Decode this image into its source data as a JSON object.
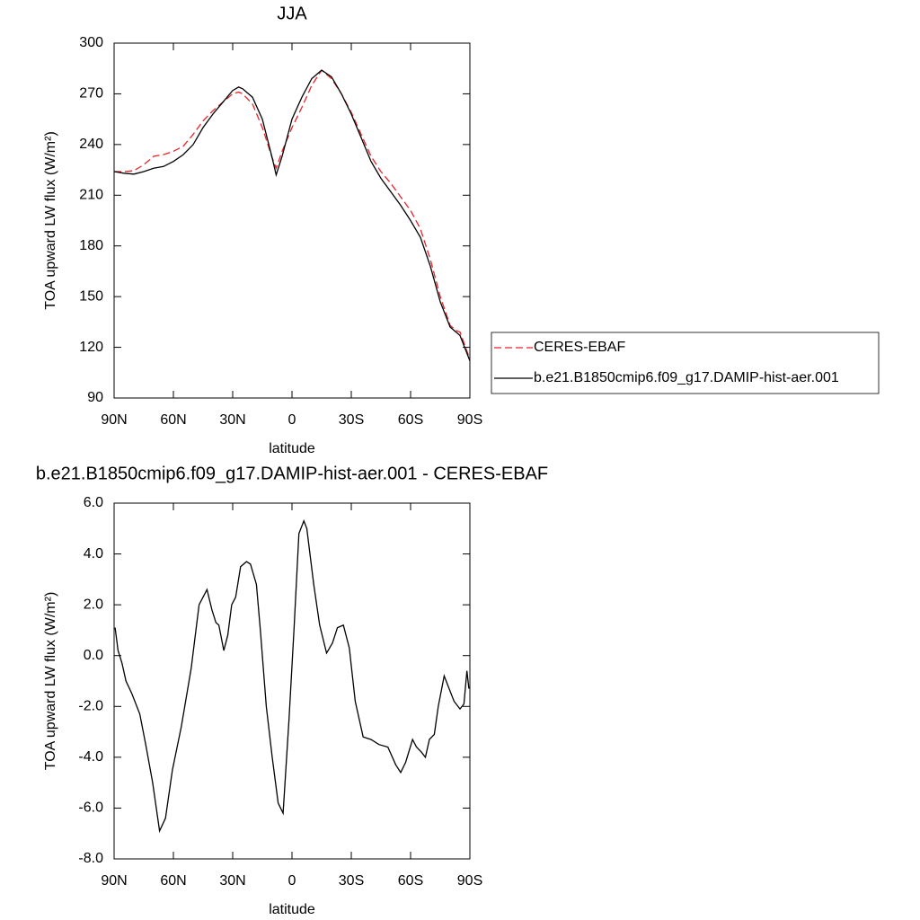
{
  "chart_data": [
    {
      "type": "line",
      "title": "JJA",
      "x_label": "latitude",
      "y_label": "TOA upward LW flux (W/m²)",
      "x": [
        90,
        85,
        80,
        75,
        70,
        65,
        60,
        55,
        50,
        45,
        40,
        35,
        30,
        27,
        25,
        20,
        15,
        10,
        8,
        5,
        0,
        -5,
        -10,
        -15,
        -20,
        -25,
        -30,
        -35,
        -40,
        -45,
        -50,
        -55,
        -60,
        -65,
        -70,
        -75,
        -80,
        -83,
        -85,
        -90
      ],
      "xlim": [
        90,
        -90
      ],
      "xticks": [
        {
          "value": 90,
          "label": "90N"
        },
        {
          "value": 60,
          "label": "60N"
        },
        {
          "value": 30,
          "label": "30N"
        },
        0,
        {
          "value": -30,
          "label": "30S"
        },
        {
          "value": -60,
          "label": "60S"
        },
        {
          "value": -90,
          "label": "90S"
        }
      ],
      "ylim": [
        90,
        300
      ],
      "yticks": [
        90,
        120,
        150,
        180,
        210,
        240,
        270,
        300
      ],
      "legend": "right",
      "series": [
        {
          "name": "CERES-EBAF",
          "color": "#e8232a",
          "style": "dashed",
          "values": [
            224,
            224,
            224.5,
            228,
            233,
            234,
            236,
            239,
            246,
            254,
            260,
            265,
            270,
            271,
            270,
            264,
            250,
            232,
            226,
            236,
            250,
            262,
            275,
            284,
            279,
            270,
            259,
            246,
            233,
            224,
            217,
            209,
            201,
            190,
            172,
            150,
            133,
            130,
            129,
            113
          ]
        },
        {
          "name": "b.e21.B1850cmip6.f09_g17.DAMIP-hist-aer.001",
          "color": "#000000",
          "style": "solid",
          "values": [
            224,
            223,
            222.5,
            224,
            226,
            227,
            230,
            234,
            240,
            250,
            258,
            265,
            272,
            274,
            273,
            268,
            255,
            232,
            222,
            233,
            255,
            268,
            279,
            284,
            280,
            270,
            258,
            244,
            230,
            220,
            212,
            204,
            195,
            185,
            168,
            147,
            132,
            129,
            127,
            112
          ]
        }
      ]
    },
    {
      "type": "line",
      "title": "b.e21.B1850cmip6.f09_g17.DAMIP-hist-aer.001 - CERES-EBAF",
      "x_label": "latitude",
      "y_label": "TOA upward LW flux (W/m²)",
      "x": [
        89.5,
        88,
        86,
        84,
        81,
        77,
        74,
        70.5,
        67,
        64,
        60.5,
        56,
        51,
        47,
        43,
        40.5,
        38.5,
        37,
        34.5,
        32.5,
        30.5,
        28.5,
        26,
        23,
        21,
        18,
        16,
        13,
        10,
        7,
        4.5,
        1.5,
        -1,
        -3.5,
        -6,
        -7.5,
        -11,
        -14,
        -17.5,
        -20.5,
        -23,
        -26,
        -29,
        -32,
        -36,
        -40,
        -44,
        -48.5,
        -52.5,
        -55,
        -57.5,
        -61,
        -63,
        -65.5,
        -67.5,
        -69.5,
        -72,
        -74,
        -77,
        -79,
        -82,
        -85,
        -87,
        -88.5,
        -89.5
      ],
      "values": [
        1.1,
        0.2,
        -0.3,
        -1.0,
        -1.5,
        -2.3,
        -3.5,
        -5.0,
        -6.9,
        -6.4,
        -4.5,
        -2.8,
        -0.5,
        2.0,
        2.6,
        1.8,
        1.3,
        1.2,
        0.2,
        0.8,
        2.0,
        2.3,
        3.5,
        3.7,
        3.6,
        2.8,
        1.0,
        -2.0,
        -4.0,
        -5.8,
        -6.2,
        -2.5,
        1.0,
        4.8,
        5.3,
        5.0,
        2.8,
        1.2,
        0.1,
        0.5,
        1.1,
        1.2,
        0.3,
        -1.8,
        -3.2,
        -3.3,
        -3.5,
        -3.6,
        -4.3,
        -4.6,
        -4.2,
        -3.3,
        -3.6,
        -3.8,
        -4.0,
        -3.3,
        -3.1,
        -2.0,
        -0.8,
        -1.2,
        -1.8,
        -2.1,
        -1.9,
        -0.6,
        -1.3
      ],
      "color": "#000000",
      "xlim": [
        90,
        -90
      ],
      "xticks": [
        {
          "value": 90,
          "label": "90N"
        },
        {
          "value": 60,
          "label": "60N"
        },
        {
          "value": 30,
          "label": "30N"
        },
        0,
        {
          "value": -30,
          "label": "30S"
        },
        {
          "value": -60,
          "label": "60S"
        },
        {
          "value": -90,
          "label": "90S"
        }
      ],
      "ylim": [
        -8,
        6
      ],
      "yticks": [
        {
          "value": -8,
          "label": "-8.0"
        },
        {
          "value": -6,
          "label": "-6.0"
        },
        {
          "value": -4,
          "label": "-4.0"
        },
        {
          "value": -2,
          "label": "-2.0"
        },
        {
          "value": 0,
          "label": "0.0"
        },
        {
          "value": 2,
          "label": "2.0"
        },
        {
          "value": 4,
          "label": "4.0"
        },
        {
          "value": 6,
          "label": "6.0"
        }
      ]
    }
  ]
}
